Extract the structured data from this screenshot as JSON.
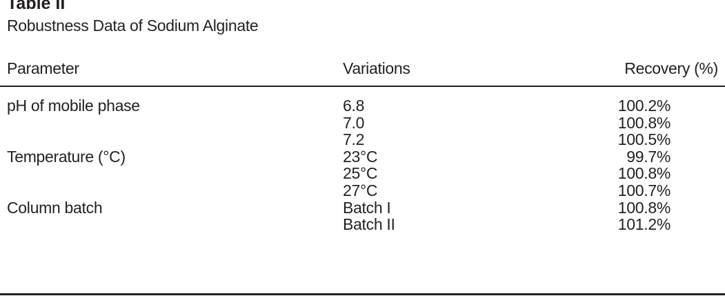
{
  "table": {
    "label": "Table II",
    "caption": "Robustness Data of Sodium Alginate",
    "headers": [
      "Parameter",
      "Variations",
      "Recovery (%)"
    ],
    "rows": [
      [
        "pH of mobile phase",
        "6.8",
        "100.2%"
      ],
      [
        "",
        "7.0",
        "100.8%"
      ],
      [
        "",
        "7.2",
        "100.5%"
      ],
      [
        "Temperature (°C)",
        "23°C",
        "99.7%"
      ],
      [
        "",
        "25°C",
        "100.8%"
      ],
      [
        "",
        "27°C",
        "100.7%"
      ],
      [
        "Column batch",
        "Batch I",
        "100.8%"
      ],
      [
        "",
        "Batch II",
        "101.2%"
      ]
    ]
  }
}
